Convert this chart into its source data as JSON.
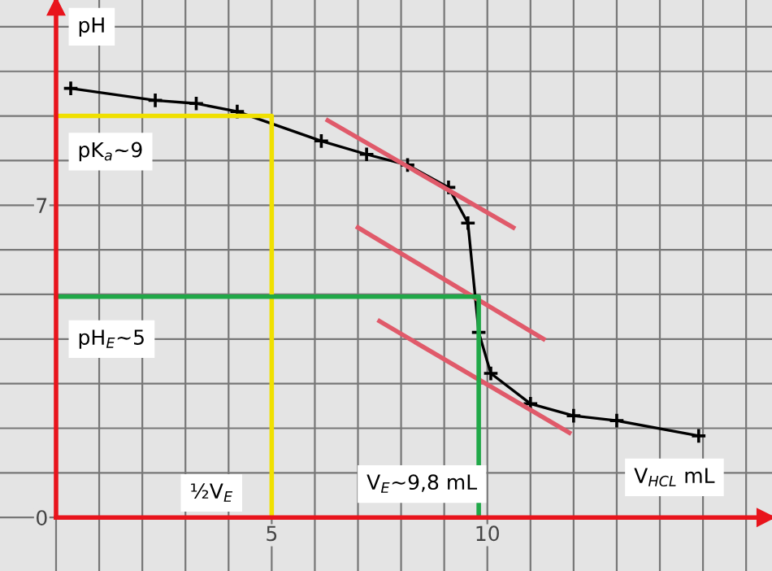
{
  "chart_data": {
    "type": "line",
    "xlabel": "V$_{HCL}$ mL",
    "ylabel": "pH",
    "annotations": [
      "pK$_{a}$~9",
      "pH$_{E}$~5",
      "½V$_{E}$",
      "V$_{E}$~9,8 mL"
    ],
    "xlim": [
      -1.3,
      16.6
    ],
    "ylim": [
      -1.2,
      11.6
    ],
    "xticks": [
      {
        "value": 0,
        "label": null
      },
      {
        "value": 1,
        "label": null
      },
      {
        "value": 2,
        "label": null
      },
      {
        "value": 3,
        "label": null
      },
      {
        "value": 4,
        "label": null
      },
      5,
      {
        "value": 6,
        "label": null
      },
      {
        "value": 7,
        "label": null
      },
      {
        "value": 8,
        "label": null
      },
      {
        "value": 9,
        "label": null
      },
      10,
      {
        "value": 11,
        "label": null
      },
      {
        "value": 12,
        "label": null
      },
      {
        "value": 13,
        "label": null
      },
      {
        "value": 14,
        "label": null
      },
      {
        "value": 15,
        "label": null
      },
      {
        "value": 16,
        "label": null
      }
    ],
    "yticks": [
      0,
      {
        "value": 1,
        "label": null
      },
      {
        "value": 2,
        "label": null
      },
      {
        "value": 3,
        "label": null
      },
      {
        "value": 4,
        "label": null
      },
      {
        "value": 5,
        "label": null
      },
      {
        "value": 6,
        "label": null
      },
      7,
      {
        "value": 8,
        "label": null
      },
      {
        "value": 9,
        "label": null
      },
      {
        "value": 10,
        "label": null
      },
      {
        "value": 11,
        "label": null
      }
    ],
    "grid": true,
    "legend": false,
    "series": [
      {
        "color": "#000000",
        "marker": "cross",
        "line_style": "solid",
        "x": [
          0.34,
          2.3,
          3.25,
          4.2,
          6.15,
          7.2,
          8.15,
          9.1,
          9.55,
          9.8,
          10.08,
          11.0,
          12.0,
          13.0,
          14.9
        ],
        "values": [
          9.62,
          9.35,
          9.28,
          9.1,
          8.44,
          8.14,
          7.9,
          7.4,
          6.6,
          4.15,
          3.23,
          2.55,
          2.28,
          2.17,
          1.83
        ]
      },
      {
        "color": "#e05a6a",
        "marker": "none",
        "line_style": "solid",
        "x": [
          6.3,
          10.6
        ],
        "values": [
          8.9,
          6.5
        ]
      },
      {
        "color": "#e05a6a",
        "marker": "none",
        "line_style": "solid",
        "x": [
          7.0,
          11.3
        ],
        "values": [
          6.5,
          4.0
        ]
      },
      {
        "color": "#e05a6a",
        "marker": "none",
        "line_style": "solid",
        "x": [
          7.5,
          11.9
        ],
        "values": [
          4.4,
          1.9
        ]
      },
      {
        "color": "#f0e000",
        "marker": "none",
        "line_style": "solid",
        "x": [
          0,
          5,
          5
        ],
        "values": [
          9,
          9,
          0
        ]
      },
      {
        "color": "#20a848",
        "marker": "none",
        "line_style": "solid",
        "x": [
          0,
          9.8,
          9.8
        ],
        "values": [
          4.95,
          4.95,
          0
        ]
      }
    ]
  }
}
